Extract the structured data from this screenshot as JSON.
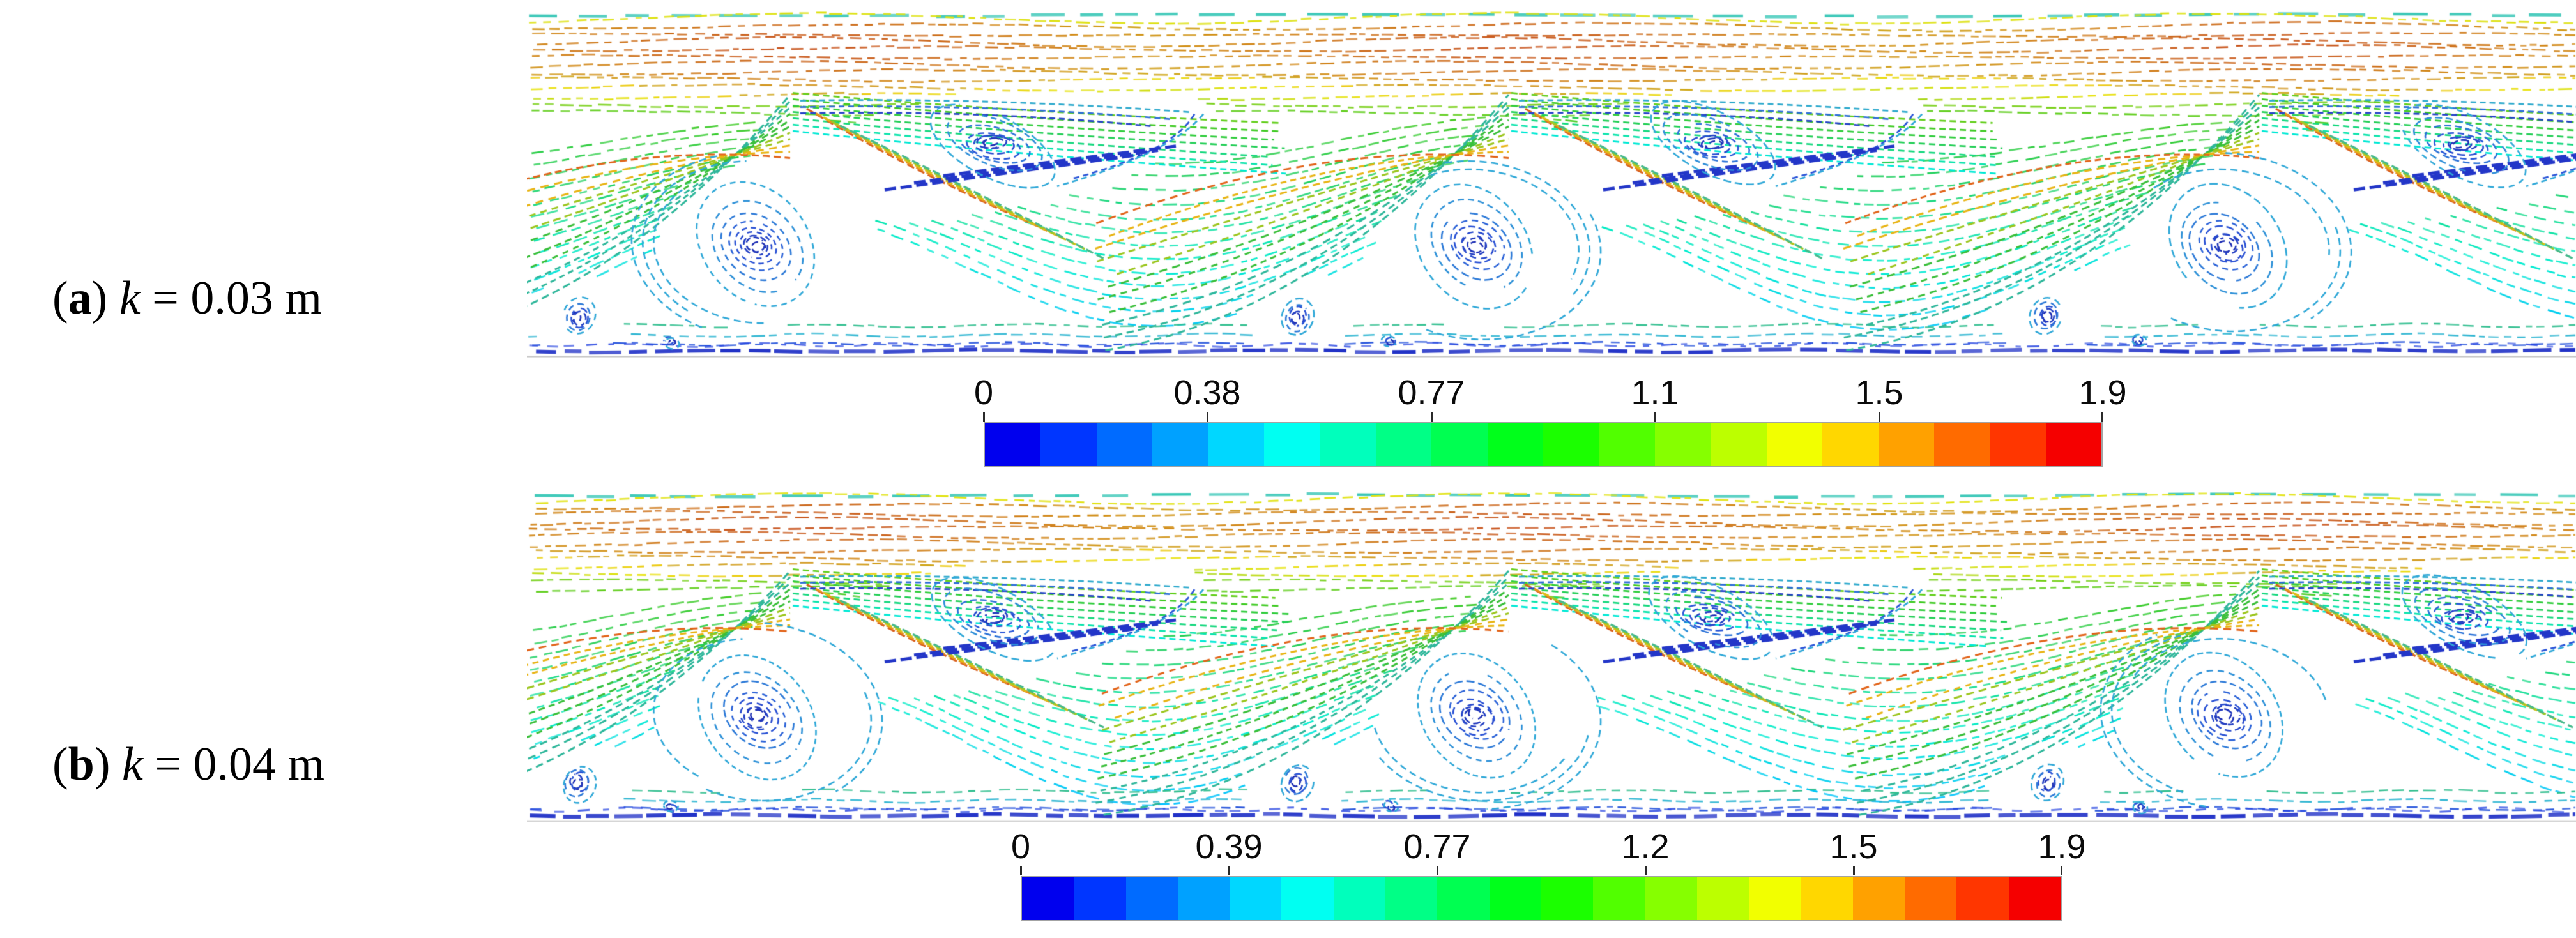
{
  "figure": {
    "background": "#ffffff",
    "panels": [
      {
        "id": "a",
        "label": {
          "open": "(",
          "letter": "a",
          "close": ") ",
          "symbol": "k",
          "value": " = 0.03 m"
        },
        "colorbar": {
          "min": 0,
          "max": 1.9,
          "ticks": [
            "0",
            "0.38",
            "0.77",
            "1.1",
            "1.5",
            "1.9"
          ]
        }
      },
      {
        "id": "b",
        "label": {
          "open": "(",
          "letter": "b",
          "close": ") ",
          "symbol": "k",
          "value": " = 0.04 m"
        },
        "colorbar": {
          "min": 0,
          "max": 1.9,
          "ticks": [
            "0",
            "0.39",
            "0.77",
            "1.2",
            "1.5",
            "1.9"
          ]
        }
      }
    ],
    "colormap": [
      "#0000EE",
      "#0036FF",
      "#006BFF",
      "#00A1FF",
      "#00D7FF",
      "#00FFF2",
      "#00FFBC",
      "#00FF86",
      "#00FF51",
      "#00FF1B",
      "#1BFF00",
      "#51FF00",
      "#86FF00",
      "#BCFF00",
      "#F2FF00",
      "#FFD700",
      "#FFA100",
      "#FF6B00",
      "#FF3600",
      "#F50000"
    ],
    "jet_stops": [
      [
        0,
        "#0000E6"
      ],
      [
        0.12,
        "#0040FF"
      ],
      [
        0.25,
        "#00C0FF"
      ],
      [
        0.34,
        "#00EED0"
      ],
      [
        0.45,
        "#20D060"
      ],
      [
        0.55,
        "#3CCB25"
      ],
      [
        0.65,
        "#8CD214"
      ],
      [
        0.74,
        "#E8E30E"
      ],
      [
        0.84,
        "#F2A212"
      ],
      [
        0.93,
        "#E55D14"
      ],
      [
        1,
        "#D92410"
      ]
    ],
    "flow_colors": {
      "top_edge_teal": "#3CC8B8",
      "brown_mute": "#8A5A2E",
      "vortex_core": "#1E2FB4",
      "vortex_mid": "#2B55D8",
      "vortex_outer": "#2FA8D8",
      "bottom_line": "#1D2EC6",
      "wedge_blue": "#2336C8",
      "jet_band": [
        "#D95F1E",
        "#E8941C",
        "#DDBF17",
        "#9CC928",
        "#46B98C"
      ],
      "sweep": [
        "#2FB79B",
        "#3ABF3A",
        "#9CC61E",
        "#E8B414",
        "#E2641A"
      ],
      "triangle_edges": [
        "#2FAACD",
        "#2F6FD8",
        "#2744C9"
      ],
      "closure": [
        "#2B55D8",
        "#2FA8D8"
      ],
      "bottom_rows": [
        "#2FBE8E",
        "#2FB6D2",
        "#2A57DC"
      ]
    }
  }
}
